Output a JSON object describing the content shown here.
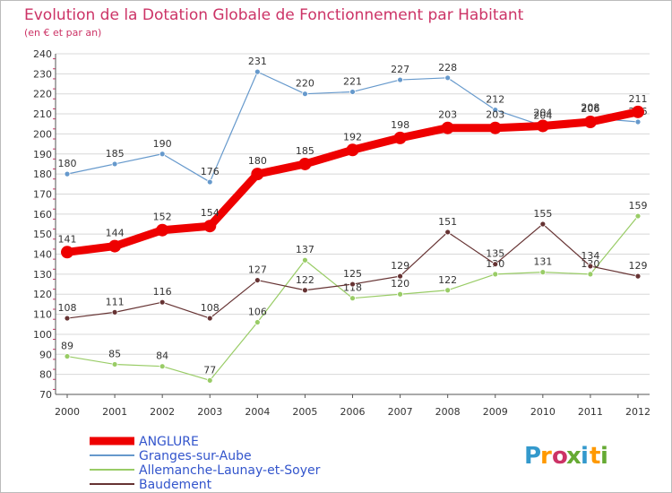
{
  "chart_data": {
    "type": "line",
    "title": "Evolution de la Dotation Globale de Fonctionnement par Habitant",
    "subtitle": "(en € et par an)",
    "xlabel": "",
    "ylabel": "",
    "x": [
      "2000",
      "2001",
      "2002",
      "2003",
      "2004",
      "2005",
      "2006",
      "2007",
      "2008",
      "2009",
      "2010",
      "2011",
      "2012"
    ],
    "ylim": [
      70,
      240
    ],
    "yticks": [
      70,
      80,
      90,
      100,
      110,
      120,
      130,
      140,
      150,
      160,
      170,
      180,
      190,
      200,
      210,
      220,
      230,
      240
    ],
    "grid": "horizontal",
    "legend_position": "bottom-left",
    "series": [
      {
        "name": "Granges-sur-Aube",
        "color": "#6699cc",
        "values": [
          180,
          185,
          190,
          176,
          231,
          220,
          221,
          227,
          228,
          212,
          204,
          208,
          206
        ]
      },
      {
        "name": "Allemanche-Launay-et-Soyer",
        "color": "#99cc66",
        "values": [
          89,
          85,
          84,
          77,
          106,
          137,
          118,
          120,
          122,
          130,
          131,
          130,
          159
        ]
      },
      {
        "name": "Baudement",
        "color": "#663333",
        "values": [
          108,
          111,
          116,
          108,
          127,
          122,
          125,
          129,
          151,
          135,
          155,
          134,
          129
        ]
      },
      {
        "name": "ANGLURE",
        "color": "#ee0000",
        "highlight": true,
        "values": [
          141,
          144,
          152,
          154,
          180,
          185,
          192,
          198,
          203,
          203,
          204,
          206,
          211
        ]
      }
    ],
    "legend_order": [
      "ANGLURE",
      "Granges-sur-Aube",
      "Allemanche-Launay-et-Soyer",
      "Baudement"
    ]
  },
  "logo": {
    "text": "Proxiti",
    "colors": [
      "#3399cc",
      "#ff9900",
      "#cc3366",
      "#66aa33",
      "#3399cc",
      "#ff9900",
      "#66aa33"
    ]
  }
}
